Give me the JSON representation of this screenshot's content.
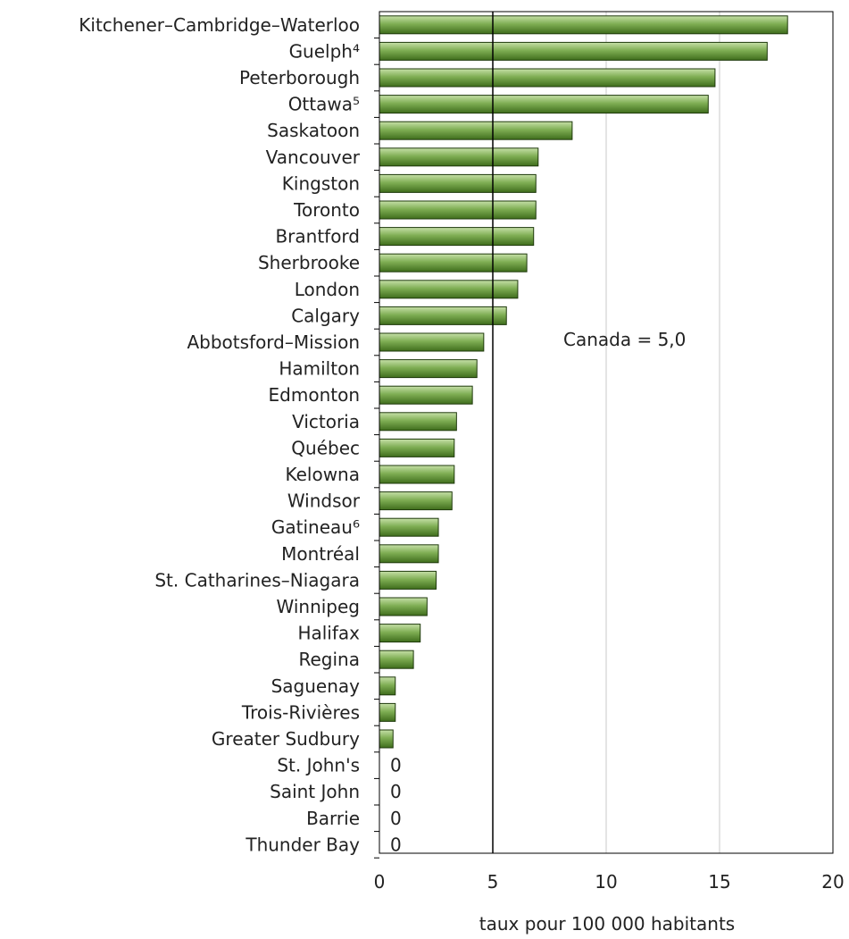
{
  "chart_data": {
    "type": "bar",
    "orientation": "horizontal",
    "title": "",
    "xlabel": "taux pour 100 000 habitants",
    "ylabel": "",
    "xlim": [
      0,
      20
    ],
    "xticks": [
      0,
      5,
      10,
      15,
      20
    ],
    "grid": true,
    "legend": "none",
    "categories": [
      "Kitchener–Cambridge–Waterloo",
      "Guelph⁴",
      "Peterborough",
      "Ottawa⁵",
      "Saskatoon",
      "Vancouver",
      "Kingston",
      "Toronto",
      "Brantford",
      "Sherbrooke",
      "London",
      "Calgary",
      "Abbotsford–Mission",
      "Hamilton",
      "Edmonton",
      "Victoria",
      "Québec",
      "Kelowna",
      "Windsor",
      "Gatineau⁶",
      "Montréal",
      "St. Catharines–Niagara",
      "Winnipeg",
      "Halifax",
      "Regina",
      "Saguenay",
      "Trois-Rivières",
      "Greater Sudbury",
      "St. John's",
      "Saint John",
      "Barrie",
      "Thunder Bay"
    ],
    "values": [
      18.0,
      17.1,
      14.8,
      14.5,
      8.5,
      7.0,
      6.9,
      6.9,
      6.8,
      6.5,
      6.1,
      5.6,
      4.6,
      4.3,
      4.1,
      3.4,
      3.3,
      3.3,
      3.2,
      2.6,
      2.6,
      2.5,
      2.1,
      1.8,
      1.5,
      0.7,
      0.7,
      0.6,
      0,
      0,
      0,
      0
    ],
    "zero_label": "0",
    "reference_line": {
      "value": 5.0,
      "label": "Canada = 5,0"
    },
    "colors": {
      "bar_fill_light": "#c6e0a8",
      "bar_fill_mid": "#7fae54",
      "bar_fill_dark": "#3f6d1c",
      "bar_stroke": "#1f3a0c",
      "grid": "#c8c8c8",
      "reference": "#000000",
      "axis": "#000000"
    }
  }
}
